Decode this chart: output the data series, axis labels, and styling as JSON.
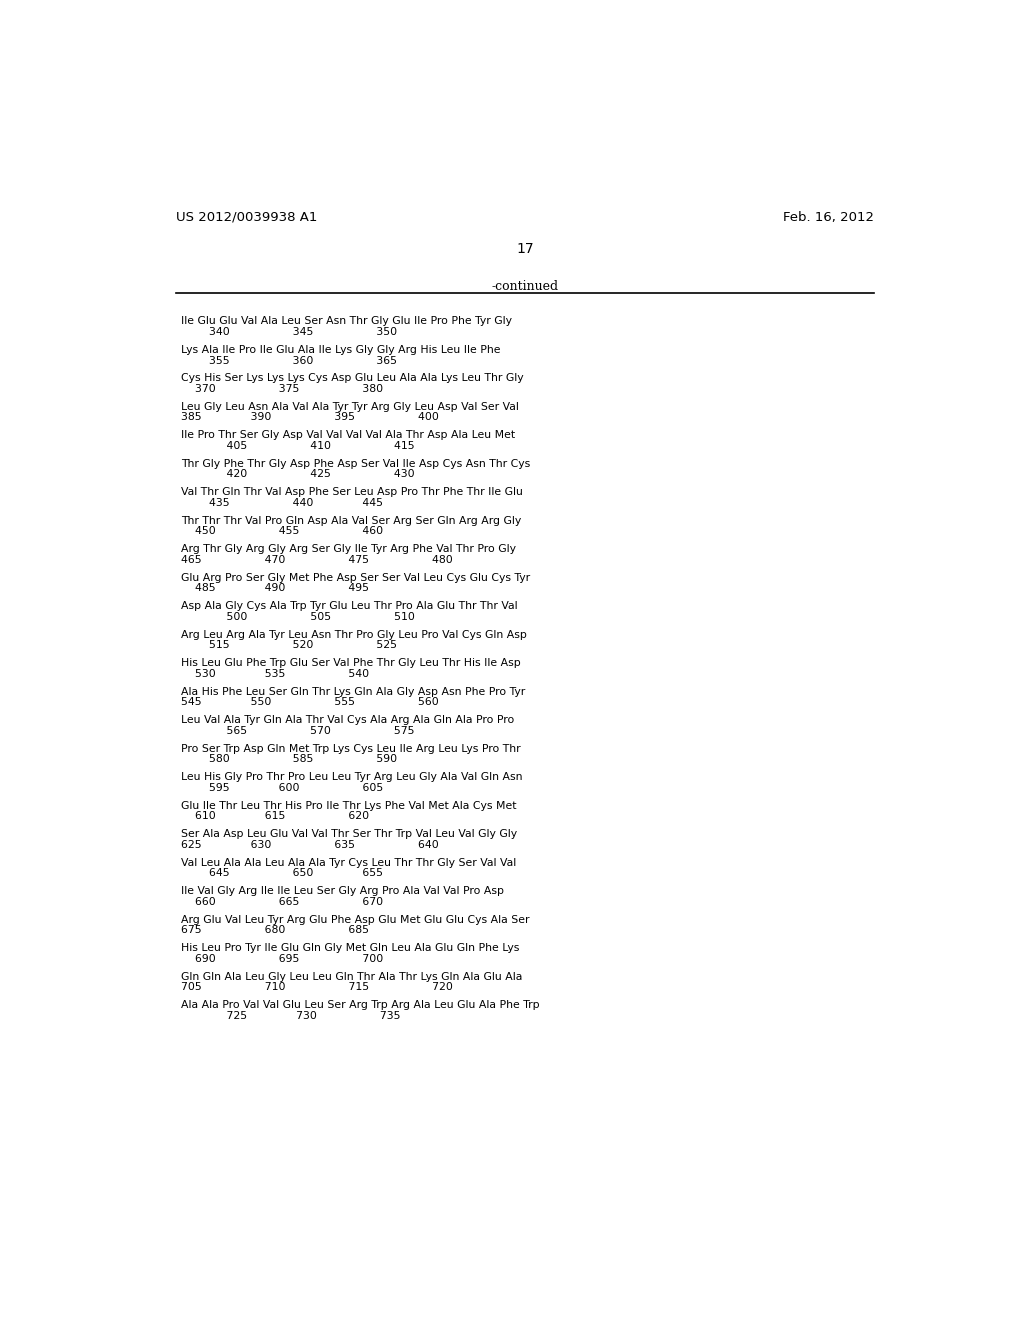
{
  "header_left": "US 2012/0039938 A1",
  "header_right": "Feb. 16, 2012",
  "page_number": "17",
  "continued_label": "-continued",
  "background_color": "#ffffff",
  "text_color": "#000000",
  "lines": [
    [
      "Ile Glu Glu Val Ala Leu Ser Asn Thr Gly Glu Ile Pro Phe Tyr Gly",
      "        340                  345                  350"
    ],
    [
      "Lys Ala Ile Pro Ile Glu Ala Ile Lys Gly Gly Arg His Leu Ile Phe",
      "        355                  360                  365"
    ],
    [
      "Cys His Ser Lys Lys Lys Cys Asp Glu Leu Ala Ala Lys Leu Thr Gly",
      "    370                  375                  380"
    ],
    [
      "Leu Gly Leu Asn Ala Val Ala Tyr Tyr Arg Gly Leu Asp Val Ser Val",
      "385              390                  395                  400"
    ],
    [
      "Ile Pro Thr Ser Gly Asp Val Val Val Val Ala Thr Asp Ala Leu Met",
      "             405                  410                  415"
    ],
    [
      "Thr Gly Phe Thr Gly Asp Phe Asp Ser Val Ile Asp Cys Asn Thr Cys",
      "             420                  425                  430"
    ],
    [
      "Val Thr Gln Thr Val Asp Phe Ser Leu Asp Pro Thr Phe Thr Ile Glu",
      "        435                  440              445"
    ],
    [
      "Thr Thr Thr Val Pro Gln Asp Ala Val Ser Arg Ser Gln Arg Arg Gly",
      "    450                  455                  460"
    ],
    [
      "Arg Thr Gly Arg Gly Arg Ser Gly Ile Tyr Arg Phe Val Thr Pro Gly",
      "465                  470                  475                  480"
    ],
    [
      "Glu Arg Pro Ser Gly Met Phe Asp Ser Ser Val Leu Cys Glu Cys Tyr",
      "    485              490                  495"
    ],
    [
      "Asp Ala Gly Cys Ala Trp Tyr Glu Leu Thr Pro Ala Glu Thr Thr Val",
      "             500                  505                  510"
    ],
    [
      "Arg Leu Arg Ala Tyr Leu Asn Thr Pro Gly Leu Pro Val Cys Gln Asp",
      "        515                  520                  525"
    ],
    [
      "His Leu Glu Phe Trp Glu Ser Val Phe Thr Gly Leu Thr His Ile Asp",
      "    530              535                  540"
    ],
    [
      "Ala His Phe Leu Ser Gln Thr Lys Gln Ala Gly Asp Asn Phe Pro Tyr",
      "545              550                  555                  560"
    ],
    [
      "Leu Val Ala Tyr Gln Ala Thr Val Cys Ala Arg Ala Gln Ala Pro Pro",
      "             565                  570                  575"
    ],
    [
      "Pro Ser Trp Asp Gln Met Trp Lys Cys Leu Ile Arg Leu Lys Pro Thr",
      "        580                  585                  590"
    ],
    [
      "Leu His Gly Pro Thr Pro Leu Leu Tyr Arg Leu Gly Ala Val Gln Asn",
      "        595              600                  605"
    ],
    [
      "Glu Ile Thr Leu Thr His Pro Ile Thr Lys Phe Val Met Ala Cys Met",
      "    610              615                  620"
    ],
    [
      "Ser Ala Asp Leu Glu Val Val Thr Ser Thr Trp Val Leu Val Gly Gly",
      "625              630                  635                  640"
    ],
    [
      "Val Leu Ala Ala Leu Ala Ala Tyr Cys Leu Thr Thr Gly Ser Val Val",
      "        645                  650              655"
    ],
    [
      "Ile Val Gly Arg Ile Ile Leu Ser Gly Arg Pro Ala Val Val Pro Asp",
      "    660                  665                  670"
    ],
    [
      "Arg Glu Val Leu Tyr Arg Glu Phe Asp Glu Met Glu Glu Cys Ala Ser",
      "675                  680                  685"
    ],
    [
      "His Leu Pro Tyr Ile Glu Gln Gly Met Gln Leu Ala Glu Gln Phe Lys",
      "    690                  695                  700"
    ],
    [
      "Gln Gln Ala Leu Gly Leu Leu Gln Thr Ala Thr Lys Gln Ala Glu Ala",
      "705                  710                  715                  720"
    ],
    [
      "Ala Ala Pro Val Val Glu Leu Ser Arg Trp Arg Ala Leu Glu Ala Phe Trp",
      "             725              730                  735"
    ]
  ]
}
